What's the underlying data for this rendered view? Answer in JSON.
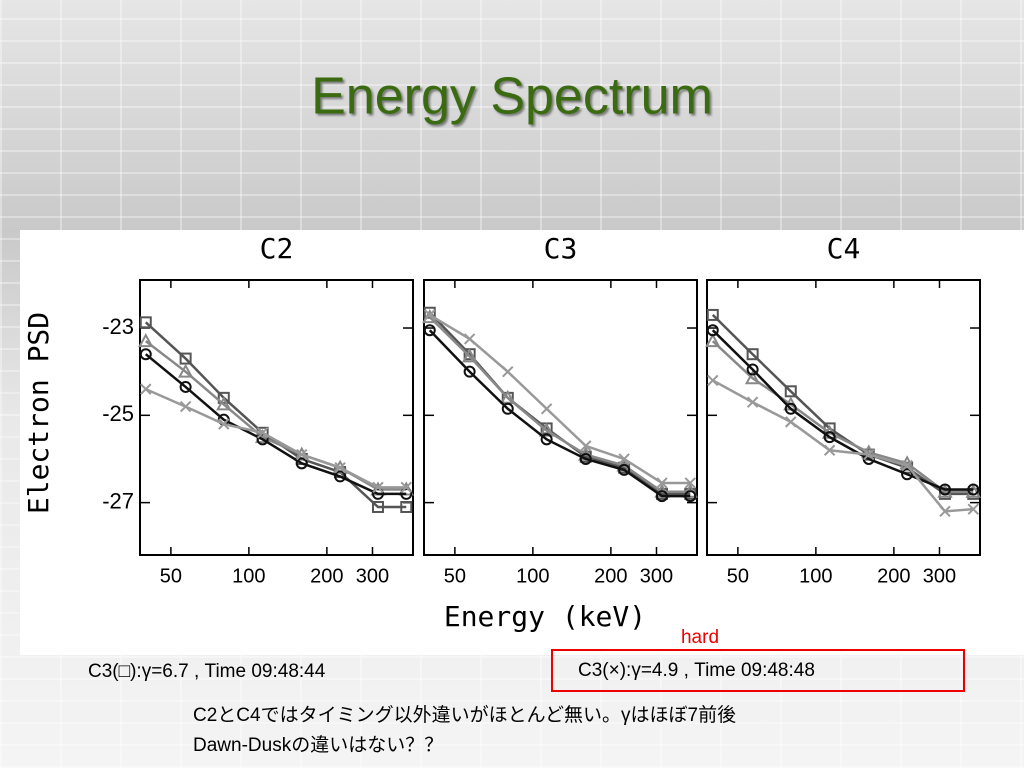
{
  "title": "Energy Spectrum",
  "y_label": "Electron PSD",
  "x_label": "Energy (keV)",
  "annotation": "hard",
  "notes": [
    "C3(□):γ=6.7 , Time 09:48:44",
    "C3(×):γ=4.9 , Time 09:48:48"
  ],
  "comments": [
    "C2とC4ではタイミング以外違いがほとんど無い。γはほぼ7前後",
    "Dawn-Duskの違いはない？？"
  ],
  "chart_data": [
    {
      "type": "line",
      "title": "C2",
      "xscale": "log",
      "xlim": [
        38,
        430
      ],
      "ylim": [
        -28.2,
        -21.9
      ],
      "xticks": [
        50,
        100,
        200,
        300
      ],
      "yticks": [
        -23,
        -25,
        -27
      ],
      "x": [
        40,
        57,
        80,
        113,
        160,
        225,
        315,
        405
      ],
      "series": [
        {
          "marker": "square",
          "color": "#555555",
          "values": [
            -22.87,
            -23.7,
            -24.6,
            -25.4,
            -26.0,
            -26.3,
            -27.1,
            -27.1
          ]
        },
        {
          "marker": "triangle",
          "color": "#888888",
          "values": [
            -23.3,
            -24.0,
            -24.75,
            -25.5,
            -25.9,
            -26.2,
            -26.7,
            -26.7
          ]
        },
        {
          "marker": "circle",
          "color": "#111111",
          "values": [
            -23.6,
            -24.35,
            -25.1,
            -25.55,
            -26.1,
            -26.4,
            -26.8,
            -26.8
          ]
        },
        {
          "marker": "cross",
          "color": "#999999",
          "values": [
            -24.4,
            -24.8,
            -25.2,
            -25.4,
            -25.9,
            -26.2,
            -26.65,
            -26.65
          ]
        }
      ]
    },
    {
      "type": "line",
      "title": "C3",
      "xscale": "log",
      "xlim": [
        38,
        430
      ],
      "ylim": [
        -28.2,
        -21.9
      ],
      "xticks": [
        50,
        100,
        200,
        300
      ],
      "yticks": [
        -23,
        -25,
        -27
      ],
      "x": [
        40,
        57,
        80,
        113,
        160,
        225,
        315,
        405
      ],
      "series": [
        {
          "marker": "square",
          "color": "#555555",
          "values": [
            -22.65,
            -23.6,
            -24.6,
            -25.3,
            -25.95,
            -26.2,
            -26.8,
            -26.8
          ]
        },
        {
          "marker": "triangle",
          "color": "#888888",
          "values": [
            -22.75,
            -23.65,
            -24.6,
            -25.35,
            -25.9,
            -26.15,
            -26.75,
            -26.75
          ]
        },
        {
          "marker": "circle",
          "color": "#111111",
          "values": [
            -23.05,
            -24.0,
            -24.85,
            -25.55,
            -26.0,
            -26.25,
            -26.85,
            -26.85
          ]
        },
        {
          "marker": "cross",
          "color": "#999999",
          "values": [
            -22.7,
            -23.25,
            -24.0,
            -24.85,
            -25.7,
            -26.0,
            -26.55,
            -26.55
          ]
        }
      ]
    },
    {
      "type": "line",
      "title": "C4",
      "xscale": "log",
      "xlim": [
        38,
        430
      ],
      "ylim": [
        -28.2,
        -21.9
      ],
      "xticks": [
        50,
        100,
        200,
        300
      ],
      "yticks": [
        -23,
        -25,
        -27
      ],
      "x": [
        40,
        57,
        80,
        113,
        160,
        225,
        315,
        405
      ],
      "series": [
        {
          "marker": "square",
          "color": "#555555",
          "values": [
            -22.7,
            -23.6,
            -24.45,
            -25.3,
            -25.9,
            -26.2,
            -26.8,
            -26.8
          ]
        },
        {
          "marker": "triangle",
          "color": "#888888",
          "values": [
            -23.3,
            -24.15,
            -24.75,
            -25.4,
            -25.85,
            -26.1,
            -26.75,
            -26.75
          ]
        },
        {
          "marker": "circle",
          "color": "#111111",
          "values": [
            -23.05,
            -23.95,
            -24.85,
            -25.5,
            -26.0,
            -26.35,
            -26.7,
            -26.7
          ]
        },
        {
          "marker": "cross",
          "color": "#999999",
          "values": [
            -24.2,
            -24.7,
            -25.15,
            -25.8,
            -25.9,
            -26.15,
            -27.2,
            -27.15
          ]
        }
      ]
    }
  ]
}
